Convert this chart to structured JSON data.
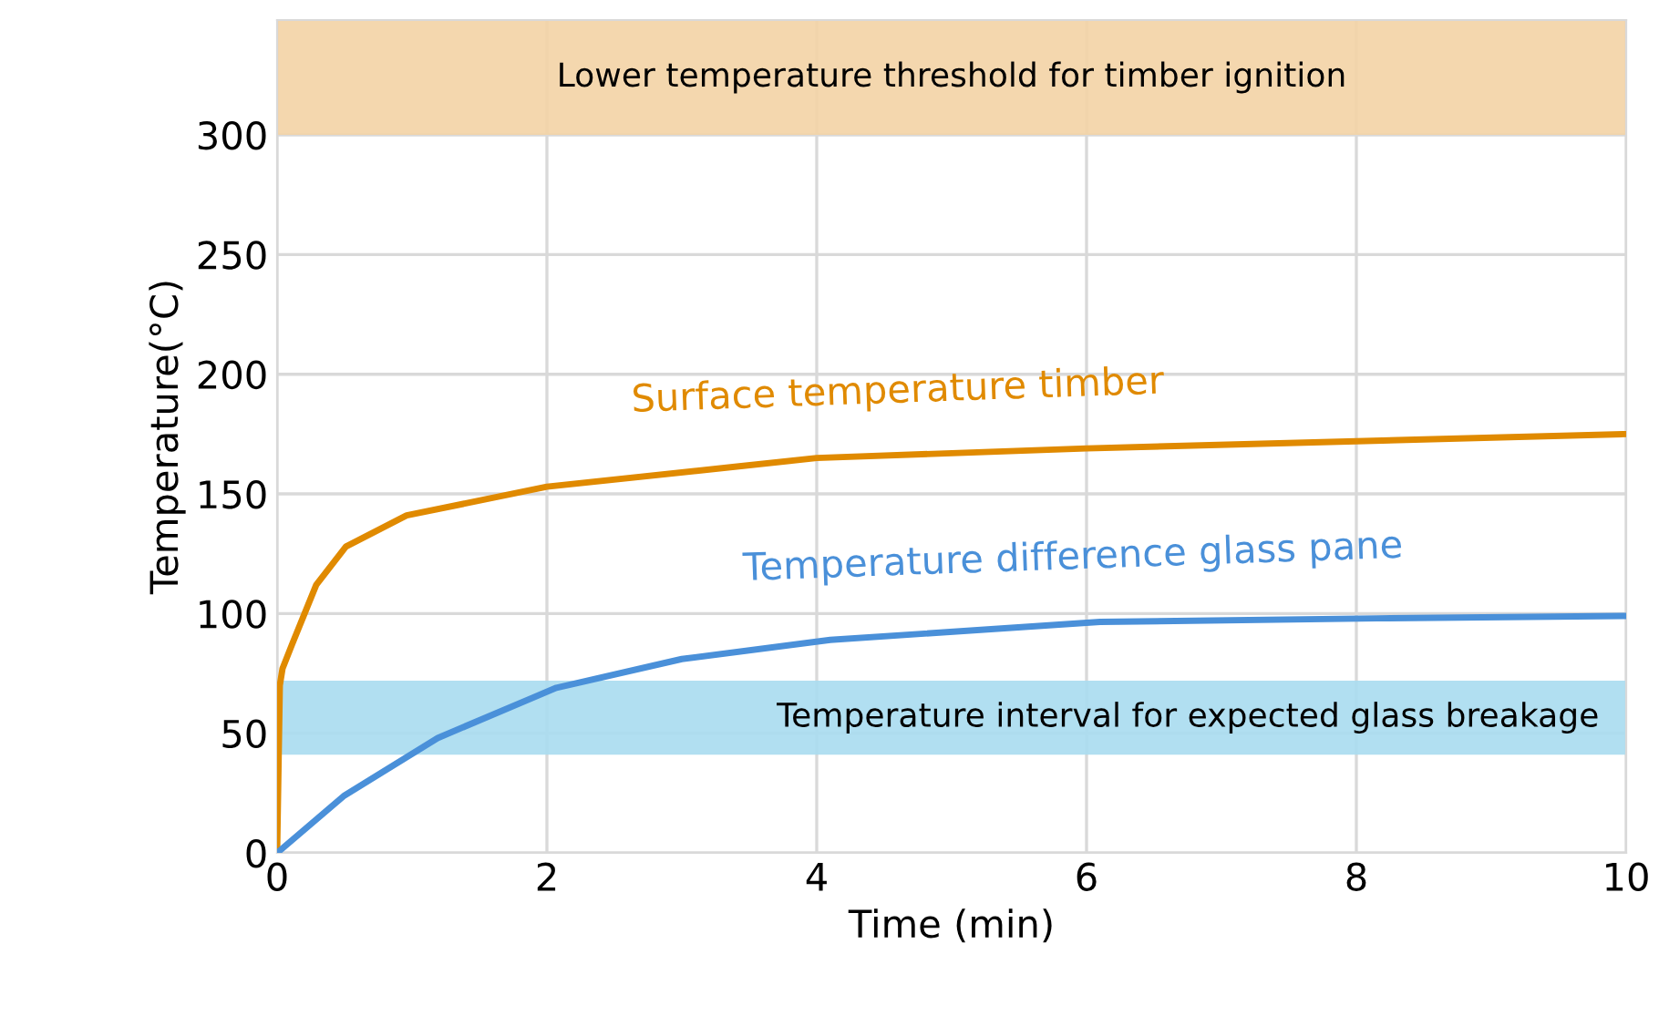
{
  "chart_data": {
    "type": "line",
    "xlabel": "Time (min)",
    "ylabel": "Temperature(°C)",
    "xlim": [
      0,
      10
    ],
    "ylim": [
      0,
      348
    ],
    "xticks": [
      0,
      2,
      4,
      6,
      8,
      10
    ],
    "yticks": [
      0,
      50,
      100,
      150,
      200,
      250,
      300
    ],
    "grid": true,
    "legend": false,
    "line_style": "solid",
    "marker": "none",
    "series": [
      {
        "name": "Surface temperature timber",
        "color": "#e08a00",
        "x": [
          0,
          0.02,
          0.04,
          0.11,
          0.29,
          0.51,
          0.96,
          2,
          4,
          6,
          8,
          10
        ],
        "values": [
          0,
          70,
          77,
          87,
          112,
          128,
          141,
          153,
          165,
          169,
          172,
          175
        ]
      },
      {
        "name": "Temperature difference glass pane",
        "color": "#4a90d9",
        "x": [
          0,
          0.5,
          1.19,
          2.07,
          3,
          4.1,
          6.1,
          8.15,
          10
        ],
        "values": [
          0,
          24,
          48,
          69,
          81,
          89,
          96.5,
          98,
          99
        ]
      }
    ],
    "bands": [
      {
        "axis": "y",
        "from": 300,
        "to": 348,
        "label": "Lower temperature threshold for timber ignition",
        "color": "#f3d3a5"
      },
      {
        "axis": "y",
        "from": 41,
        "to": 72,
        "label": "Temperature interval for expected glass breakage",
        "color": "#a9dbf0"
      }
    ]
  }
}
